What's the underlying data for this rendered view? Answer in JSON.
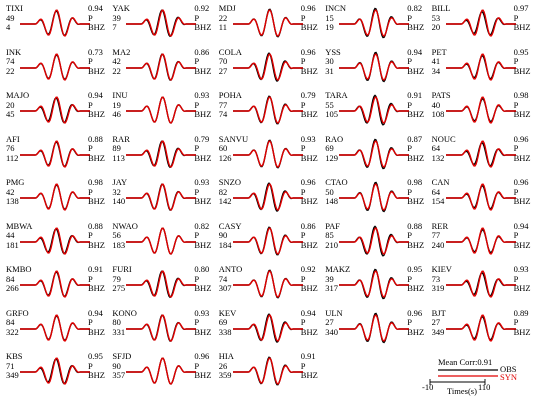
{
  "stations": [
    {
      "name": "TIXI",
      "dist": "49",
      "az": "4",
      "corr": "0.94",
      "phase": "P",
      "comp": "BHZ"
    },
    {
      "name": "YAK",
      "dist": "39",
      "az": "7",
      "corr": "0.92",
      "phase": "P",
      "comp": "BHZ"
    },
    {
      "name": "MDJ",
      "dist": "22",
      "az": "11",
      "corr": "0.96",
      "phase": "P",
      "comp": "BHZ"
    },
    {
      "name": "INCN",
      "dist": "15",
      "az": "19",
      "corr": "0.82",
      "phase": "P",
      "comp": "BHZ"
    },
    {
      "name": "BILL",
      "dist": "53",
      "az": "20",
      "corr": "0.97",
      "phase": "P",
      "comp": "BHZ"
    },
    {
      "name": "INK",
      "dist": "74",
      "az": "22",
      "corr": "0.73",
      "phase": "P",
      "comp": "BHZ"
    },
    {
      "name": "MA2",
      "dist": "42",
      "az": "22",
      "corr": "0.86",
      "phase": "P",
      "comp": "BHZ"
    },
    {
      "name": "COLA",
      "dist": "70",
      "az": "27",
      "corr": "0.96",
      "phase": "P",
      "comp": "BHZ"
    },
    {
      "name": "YSS",
      "dist": "30",
      "az": "31",
      "corr": "0.94",
      "phase": "P",
      "comp": "BHZ"
    },
    {
      "name": "PET",
      "dist": "41",
      "az": "34",
      "corr": "0.95",
      "phase": "P",
      "comp": "BHZ"
    },
    {
      "name": "MAJO",
      "dist": "20",
      "az": "45",
      "corr": "0.94",
      "phase": "P",
      "comp": "BHZ"
    },
    {
      "name": "INU",
      "dist": "19",
      "az": "46",
      "corr": "0.93",
      "phase": "P",
      "comp": "BHZ"
    },
    {
      "name": "POHA",
      "dist": "77",
      "az": "74",
      "corr": "0.79",
      "phase": "P",
      "comp": "BHZ"
    },
    {
      "name": "TARA",
      "dist": "55",
      "az": "105",
      "corr": "0.91",
      "phase": "P",
      "comp": "BHZ"
    },
    {
      "name": "PATS",
      "dist": "40",
      "az": "108",
      "corr": "0.98",
      "phase": "P",
      "comp": "BHZ"
    },
    {
      "name": "AFI",
      "dist": "76",
      "az": "112",
      "corr": "0.88",
      "phase": "P",
      "comp": "BHZ"
    },
    {
      "name": "RAR",
      "dist": "89",
      "az": "113",
      "corr": "0.79",
      "phase": "P",
      "comp": "BHZ"
    },
    {
      "name": "SANVU",
      "dist": "60",
      "az": "126",
      "corr": "0.93",
      "phase": "P",
      "comp": "BHZ"
    },
    {
      "name": "RAO",
      "dist": "69",
      "az": "129",
      "corr": "0.87",
      "phase": "P",
      "comp": "BHZ"
    },
    {
      "name": "NOUC",
      "dist": "64",
      "az": "132",
      "corr": "0.96",
      "phase": "P",
      "comp": "BHZ"
    },
    {
      "name": "PMG",
      "dist": "42",
      "az": "138",
      "corr": "0.98",
      "phase": "P",
      "comp": "BHZ"
    },
    {
      "name": "JAY",
      "dist": "32",
      "az": "140",
      "corr": "0.93",
      "phase": "P",
      "comp": "BHZ"
    },
    {
      "name": "SNZO",
      "dist": "82",
      "az": "142",
      "corr": "0.96",
      "phase": "P",
      "comp": "BHZ"
    },
    {
      "name": "CTAO",
      "dist": "50",
      "az": "148",
      "corr": "0.98",
      "phase": "P",
      "comp": "BHZ"
    },
    {
      "name": "CAN",
      "dist": "64",
      "az": "154",
      "corr": "0.96",
      "phase": "P",
      "comp": "BHZ"
    },
    {
      "name": "MBWA",
      "dist": "44",
      "az": "181",
      "corr": "0.88",
      "phase": "P",
      "comp": "BHZ"
    },
    {
      "name": "NWAO",
      "dist": "56",
      "az": "183",
      "corr": "0.82",
      "phase": "P",
      "comp": "BHZ"
    },
    {
      "name": "CASY",
      "dist": "90",
      "az": "184",
      "corr": "0.86",
      "phase": "P",
      "comp": "BHZ"
    },
    {
      "name": "PAF",
      "dist": "85",
      "az": "210",
      "corr": "0.88",
      "phase": "P",
      "comp": "BHZ"
    },
    {
      "name": "RER",
      "dist": "77",
      "az": "240",
      "corr": "0.94",
      "phase": "P",
      "comp": "BHZ"
    },
    {
      "name": "KMBO",
      "dist": "84",
      "az": "266",
      "corr": "0.91",
      "phase": "P",
      "comp": "BHZ"
    },
    {
      "name": "FURI",
      "dist": "79",
      "az": "275",
      "corr": "0.80",
      "phase": "P",
      "comp": "BHZ"
    },
    {
      "name": "ANTO",
      "dist": "74",
      "az": "307",
      "corr": "0.92",
      "phase": "P",
      "comp": "BHZ"
    },
    {
      "name": "MAKZ",
      "dist": "39",
      "az": "317",
      "corr": "0.95",
      "phase": "P",
      "comp": "BHZ"
    },
    {
      "name": "KIEV",
      "dist": "73",
      "az": "319",
      "corr": "0.93",
      "phase": "P",
      "comp": "BHZ"
    },
    {
      "name": "GRFO",
      "dist": "84",
      "az": "322",
      "corr": "0.94",
      "phase": "P",
      "comp": "BHZ"
    },
    {
      "name": "KONO",
      "dist": "80",
      "az": "331",
      "corr": "0.93",
      "phase": "P",
      "comp": "BHZ"
    },
    {
      "name": "KEV",
      "dist": "69",
      "az": "338",
      "corr": "0.94",
      "phase": "P",
      "comp": "BHZ"
    },
    {
      "name": "ULN",
      "dist": "27",
      "az": "340",
      "corr": "0.96",
      "phase": "P",
      "comp": "BHZ"
    },
    {
      "name": "BJT",
      "dist": "27",
      "az": "349",
      "corr": "0.89",
      "phase": "P",
      "comp": "BHZ"
    },
    {
      "name": "KBS",
      "dist": "71",
      "az": "349",
      "corr": "0.95",
      "phase": "P",
      "comp": "BHZ"
    },
    {
      "name": "SFJD",
      "dist": "90",
      "az": "357",
      "corr": "0.96",
      "phase": "P",
      "comp": "BHZ"
    },
    {
      "name": "HIA",
      "dist": "26",
      "az": "359",
      "corr": "0.91",
      "phase": "P",
      "comp": "BHZ"
    }
  ],
  "legend": {
    "mean_corr": "Mean Corr:0.91",
    "obs_label": "OBS",
    "syn_label": "SYN",
    "time_start": "-10",
    "time_end": "110",
    "time_label": "Times(s)"
  },
  "colors": {
    "obs": "#000000",
    "syn": "#e00000"
  }
}
